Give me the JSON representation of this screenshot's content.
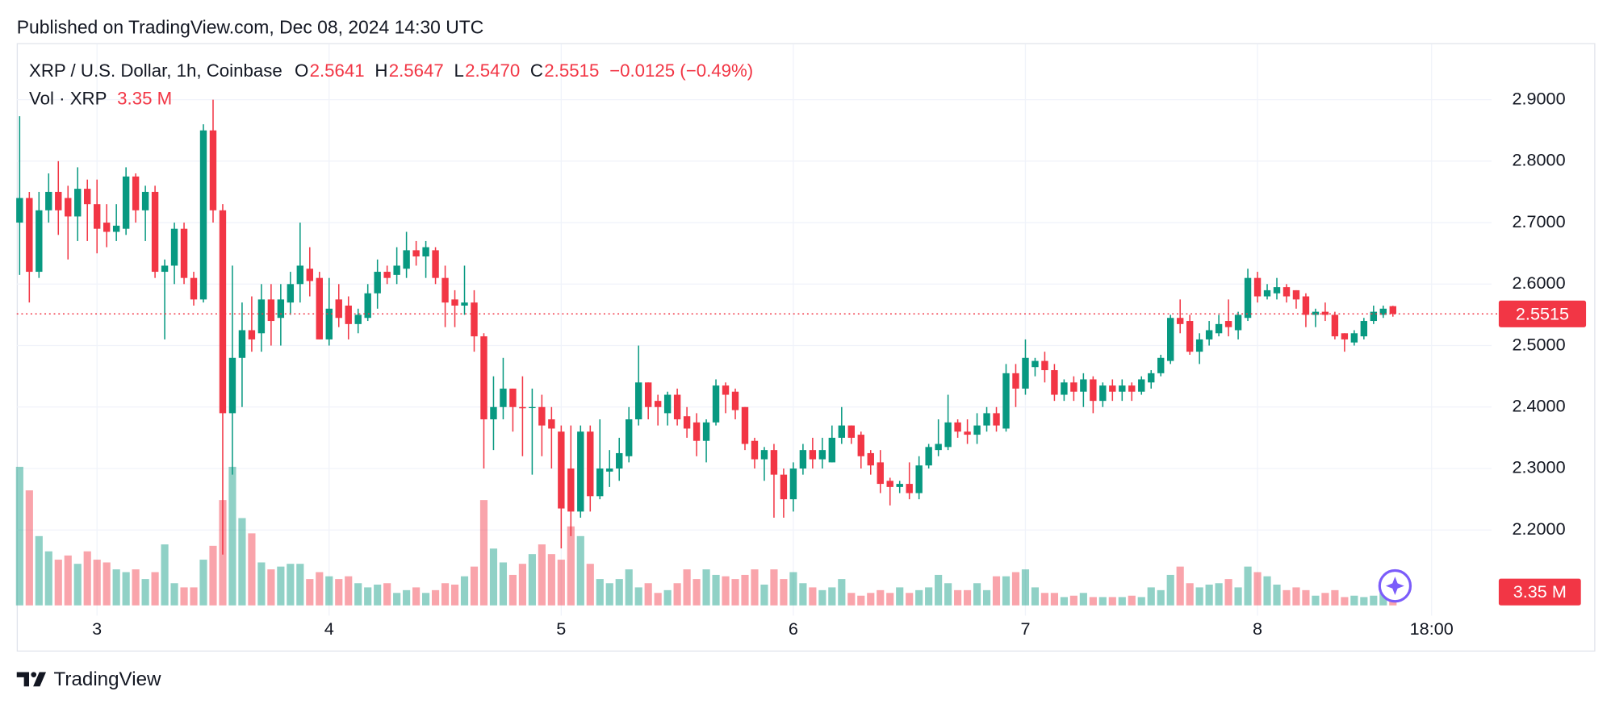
{
  "chart_data": {
    "type": "candlestick",
    "published": "Published on TradingView.com, Dec 08, 2024 14:30 UTC",
    "title": "XRP / U.S. Dollar, 1h, Coinbase",
    "ohlc_legend": [
      {
        "label": "O",
        "value": "2.5641"
      },
      {
        "label": "H",
        "value": "2.5647"
      },
      {
        "label": "L",
        "value": "2.5470"
      },
      {
        "label": "C",
        "value": "2.5515"
      }
    ],
    "change": "−0.0125 (−0.49%)",
    "volume_title": "Vol · XRP",
    "volume_last_label": "3.35 M",
    "open": [
      2.7,
      2.74,
      2.62,
      2.72,
      2.75,
      2.74,
      2.71,
      2.755,
      2.73,
      2.7,
      2.685,
      2.69,
      2.775,
      2.72,
      2.75,
      2.62,
      2.63,
      2.69,
      2.61,
      2.575,
      2.85,
      2.72,
      2.39,
      2.48,
      2.525,
      2.52,
      2.575,
      2.545,
      2.57,
      2.6,
      2.625,
      2.61,
      2.51,
      2.575,
      2.565,
      2.535,
      2.545,
      2.585,
      2.62,
      2.615,
      2.625,
      2.655,
      2.645,
      2.655,
      2.61,
      2.575,
      2.565,
      2.57,
      2.515,
      2.38,
      2.4,
      2.43,
      2.4,
      2.4,
      2.4,
      2.38,
      2.36,
      2.3,
      2.23,
      2.36,
      2.255,
      2.295,
      2.3,
      2.32,
      2.38,
      2.44,
      2.41,
      2.39,
      2.42,
      2.385,
      2.375,
      2.345,
      2.375,
      2.435,
      2.425,
      2.4,
      2.345,
      2.315,
      2.33,
      2.29,
      2.25,
      2.3,
      2.33,
      2.315,
      2.31,
      2.35,
      2.37,
      2.355,
      2.325,
      2.31,
      2.28,
      2.27,
      2.275,
      2.26,
      2.305,
      2.33,
      2.335,
      2.375,
      2.36,
      2.355,
      2.37,
      2.39,
      2.365,
      2.455,
      2.43,
      2.465,
      2.475,
      2.46,
      2.42,
      2.44,
      2.425,
      2.445,
      2.41,
      2.435,
      2.425,
      2.435,
      2.425,
      2.44,
      2.455,
      2.475,
      2.545,
      2.54,
      2.49,
      2.51,
      2.52,
      2.54,
      2.525,
      2.545,
      2.61,
      2.58,
      2.585,
      2.595,
      2.59,
      2.58,
      2.55,
      2.555,
      2.55,
      2.52,
      2.505,
      2.515,
      2.54,
      2.55,
      2.5641
    ],
    "high": [
      2.873,
      2.75,
      2.75,
      2.78,
      2.8,
      2.76,
      2.79,
      2.77,
      2.77,
      2.73,
      2.73,
      2.79,
      2.78,
      2.76,
      2.76,
      2.64,
      2.7,
      2.7,
      2.62,
      2.86,
      2.9,
      2.73,
      2.63,
      2.57,
      2.58,
      2.6,
      2.6,
      2.6,
      2.62,
      2.7,
      2.66,
      2.62,
      2.61,
      2.6,
      2.58,
      2.56,
      2.6,
      2.64,
      2.63,
      2.66,
      2.685,
      2.67,
      2.67,
      2.66,
      2.63,
      2.59,
      2.63,
      2.59,
      2.52,
      2.45,
      2.48,
      2.43,
      2.45,
      2.43,
      2.42,
      2.4,
      2.37,
      2.37,
      2.37,
      2.37,
      2.38,
      2.33,
      2.35,
      2.4,
      2.5,
      2.44,
      2.42,
      2.425,
      2.43,
      2.4,
      2.39,
      2.38,
      2.445,
      2.44,
      2.43,
      2.4,
      2.35,
      2.335,
      2.34,
      2.3,
      2.31,
      2.34,
      2.35,
      2.35,
      2.37,
      2.4,
      2.37,
      2.36,
      2.33,
      2.33,
      2.285,
      2.28,
      2.31,
      2.32,
      2.34,
      2.38,
      2.42,
      2.38,
      2.38,
      2.39,
      2.4,
      2.4,
      2.47,
      2.47,
      2.51,
      2.48,
      2.49,
      2.47,
      2.445,
      2.45,
      2.455,
      2.45,
      2.44,
      2.445,
      2.445,
      2.44,
      2.45,
      2.46,
      2.485,
      2.55,
      2.575,
      2.55,
      2.52,
      2.54,
      2.55,
      2.575,
      2.555,
      2.625,
      2.62,
      2.6,
      2.61,
      2.6,
      2.59,
      2.585,
      2.56,
      2.57,
      2.555,
      2.52,
      2.525,
      2.545,
      2.565,
      2.565,
      2.5647
    ],
    "low": [
      2.615,
      2.57,
      2.61,
      2.7,
      2.68,
      2.64,
      2.67,
      2.67,
      2.65,
      2.66,
      2.67,
      2.68,
      2.7,
      2.67,
      2.61,
      2.51,
      2.6,
      2.6,
      2.565,
      2.57,
      2.7,
      2.16,
      2.29,
      2.4,
      2.49,
      2.49,
      2.5,
      2.5,
      2.55,
      2.57,
      2.58,
      2.51,
      2.5,
      2.53,
      2.51,
      2.52,
      2.54,
      2.56,
      2.6,
      2.6,
      2.61,
      2.63,
      2.61,
      2.6,
      2.53,
      2.53,
      2.55,
      2.49,
      2.3,
      2.33,
      2.38,
      2.36,
      2.32,
      2.29,
      2.32,
      2.3,
      2.17,
      2.19,
      2.22,
      2.23,
      2.25,
      2.27,
      2.28,
      2.31,
      2.37,
      2.38,
      2.37,
      2.37,
      2.37,
      2.35,
      2.32,
      2.31,
      2.37,
      2.39,
      2.38,
      2.33,
      2.3,
      2.28,
      2.22,
      2.22,
      2.23,
      2.29,
      2.3,
      2.3,
      2.31,
      2.34,
      2.34,
      2.3,
      2.29,
      2.26,
      2.24,
      2.26,
      2.25,
      2.25,
      2.3,
      2.32,
      2.33,
      2.35,
      2.34,
      2.34,
      2.36,
      2.36,
      2.36,
      2.4,
      2.42,
      2.45,
      2.44,
      2.41,
      2.41,
      2.41,
      2.4,
      2.39,
      2.4,
      2.41,
      2.41,
      2.41,
      2.42,
      2.43,
      2.45,
      2.47,
      2.52,
      2.485,
      2.47,
      2.5,
      2.515,
      2.515,
      2.51,
      2.54,
      2.57,
      2.575,
      2.575,
      2.57,
      2.56,
      2.53,
      2.53,
      2.54,
      2.51,
      2.49,
      2.5,
      2.51,
      2.535,
      2.545,
      2.547
    ],
    "close": [
      2.74,
      2.62,
      2.72,
      2.75,
      2.72,
      2.71,
      2.755,
      2.73,
      2.69,
      2.685,
      2.695,
      2.775,
      2.72,
      2.75,
      2.62,
      2.63,
      2.69,
      2.61,
      2.575,
      2.85,
      2.72,
      2.39,
      2.48,
      2.525,
      2.51,
      2.575,
      2.54,
      2.575,
      2.6,
      2.63,
      2.605,
      2.51,
      2.56,
      2.545,
      2.535,
      2.55,
      2.585,
      2.62,
      2.61,
      2.63,
      2.655,
      2.645,
      2.66,
      2.61,
      2.57,
      2.565,
      2.57,
      2.515,
      2.38,
      2.4,
      2.43,
      2.4,
      2.398,
      2.4,
      2.37,
      2.365,
      2.235,
      2.23,
      2.36,
      2.255,
      2.3,
      2.3,
      2.325,
      2.38,
      2.44,
      2.4,
      2.4,
      2.42,
      2.38,
      2.365,
      2.345,
      2.375,
      2.435,
      2.42,
      2.395,
      2.34,
      2.315,
      2.33,
      2.29,
      2.25,
      2.3,
      2.33,
      2.315,
      2.33,
      2.35,
      2.37,
      2.35,
      2.32,
      2.305,
      2.275,
      2.27,
      2.275,
      2.26,
      2.305,
      2.335,
      2.34,
      2.375,
      2.36,
      2.355,
      2.37,
      2.39,
      2.37,
      2.455,
      2.43,
      2.48,
      2.475,
      2.46,
      2.42,
      2.44,
      2.425,
      2.445,
      2.41,
      2.435,
      2.425,
      2.435,
      2.425,
      2.445,
      2.455,
      2.48,
      2.545,
      2.535,
      2.49,
      2.51,
      2.525,
      2.535,
      2.53,
      2.55,
      2.61,
      2.58,
      2.59,
      2.595,
      2.58,
      2.575,
      2.55,
      2.555,
      2.55,
      2.515,
      2.51,
      2.52,
      2.54,
      2.555,
      2.56,
      2.5515
    ],
    "volume": [
      100,
      83,
      50,
      39,
      33,
      36,
      30,
      39,
      33,
      31,
      26,
      24,
      26,
      19,
      24,
      44,
      16,
      13,
      13,
      33,
      43,
      76,
      100,
      63,
      52,
      31,
      26,
      28,
      30,
      30,
      19,
      24,
      21,
      19,
      21,
      16,
      13,
      15,
      16,
      9,
      11,
      13,
      9,
      11,
      16,
      15,
      21,
      28,
      76,
      41,
      31,
      22,
      30,
      37,
      44,
      37,
      33,
      57,
      50,
      30,
      19,
      16,
      19,
      26,
      13,
      16,
      9,
      11,
      16,
      26,
      19,
      26,
      22,
      21,
      19,
      22,
      26,
      15,
      26,
      19,
      24,
      16,
      13,
      11,
      13,
      19,
      9,
      7,
      9,
      11,
      9,
      13,
      9,
      11,
      13,
      22,
      16,
      11,
      11,
      16,
      11,
      21,
      21,
      24,
      26,
      13,
      9,
      9,
      6,
      7,
      9,
      6,
      6,
      6,
      6,
      7,
      6,
      13,
      11,
      22,
      28,
      16,
      13,
      15,
      16,
      19,
      13,
      28,
      24,
      21,
      15,
      11,
      13,
      11,
      7,
      9,
      11,
      6,
      7,
      6,
      7,
      9,
      3.35
    ],
    "up_color": "#089981",
    "down_color": "#f23645",
    "xlim": [
      -0.3,
      152.2
    ],
    "xticks": [
      {
        "value": 8,
        "label": "3"
      },
      {
        "value": 32,
        "label": "4"
      },
      {
        "value": 56,
        "label": "5"
      },
      {
        "value": 80,
        "label": "6"
      },
      {
        "value": 104,
        "label": "7"
      },
      {
        "value": 128,
        "label": "8"
      },
      {
        "value": 146,
        "label": "18:00"
      }
    ],
    "ylim": [
      2.064,
      2.992
    ],
    "yticks": [
      {
        "value": 2.2,
        "label": "2.2000"
      },
      {
        "value": 2.3,
        "label": "2.3000"
      },
      {
        "value": 2.4,
        "label": "2.4000"
      },
      {
        "value": 2.5,
        "label": "2.5000"
      },
      {
        "value": 2.6,
        "label": "2.6000"
      },
      {
        "value": 2.7,
        "label": "2.7000"
      },
      {
        "value": 2.8,
        "label": "2.8000"
      },
      {
        "value": 2.9,
        "label": "2.9000"
      }
    ],
    "volume_ylim": [
      0,
      365
    ],
    "grid": true,
    "last_price_line": true
  },
  "footer": {
    "brand": "TradingView"
  }
}
